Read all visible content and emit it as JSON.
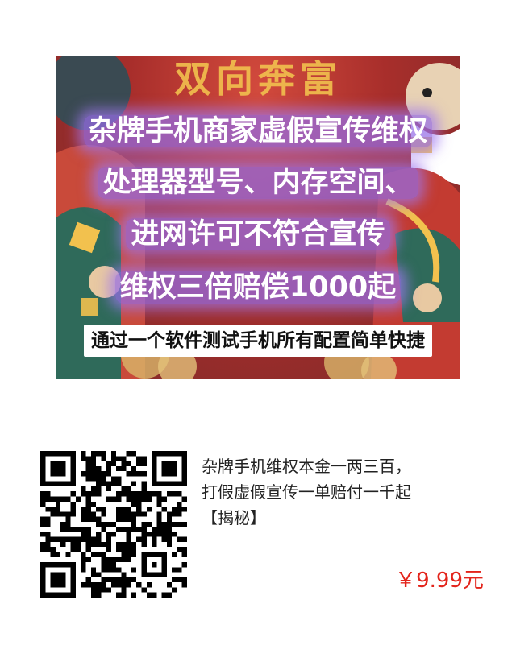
{
  "banner": {
    "heading": "双向奔富",
    "lines": [
      "杂牌手机商家虚假宣传维权",
      "处理器型号、内存空间、",
      "进网许可不符合宣传",
      "维权三倍赔偿1000起"
    ],
    "note": "通过一个软件测试手机所有配置简单快捷"
  },
  "product": {
    "title_line1": "杂牌手机维权本金一两三百，",
    "title_line2": "打假虚假宣传一单赔付一千起",
    "title_line3": "【揭秘】",
    "price": "￥9.99元"
  },
  "colors": {
    "price": "#e3241b",
    "banner_red": "#a82e2b",
    "glow_purple": "#966ee6"
  },
  "icons": {
    "qr": "qr-code-icon"
  }
}
